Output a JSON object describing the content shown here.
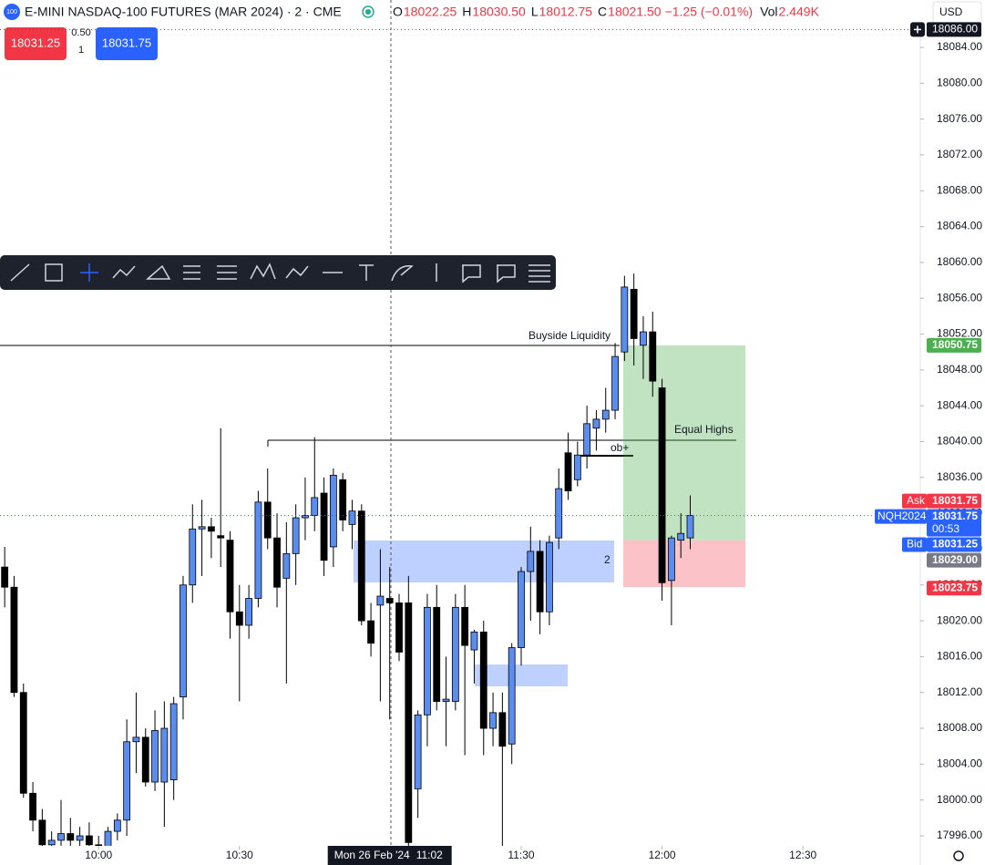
{
  "header": {
    "badge": "100",
    "title": "E-MINI NASDAQ-100 FUTURES (MAR 2024) · 2 · CME",
    "ohlc": [
      {
        "k": "O",
        "v": "18022.25"
      },
      {
        "k": "H",
        "v": "18030.50"
      },
      {
        "k": "L",
        "v": "18012.75"
      },
      {
        "k": "C",
        "v": "18021.50"
      }
    ],
    "change": "−1.25 (−0.01%)",
    "vol_label": "Vol",
    "vol": "2.449K",
    "currency": "USD"
  },
  "order_panel": {
    "sell": "18031.25",
    "buy": "18031.75",
    "spread": "0.50",
    "qty": "1"
  },
  "crosshair": {
    "date": "Mon 26 Feb '24",
    "time": "11:02",
    "price": {
      "value": 18086,
      "label": "18086.00"
    }
  },
  "annotations": {
    "buyside": "Buyside Liquidity",
    "equal_highs": "Equal Highs",
    "ob": "ob+",
    "zone": "2"
  },
  "chart_data": {
    "type": "candlestick",
    "x": [
      "09:40",
      "09:42",
      "09:44",
      "09:46",
      "09:48",
      "09:50",
      "09:52",
      "09:54",
      "09:56",
      "09:58",
      "10:00",
      "10:02",
      "10:04",
      "10:06",
      "10:08",
      "10:10",
      "10:12",
      "10:14",
      "10:16",
      "10:18",
      "10:20",
      "10:22",
      "10:24",
      "10:26",
      "10:28",
      "10:30",
      "10:32",
      "10:34",
      "10:36",
      "10:38",
      "10:40",
      "10:42",
      "10:44",
      "10:46",
      "10:48",
      "10:50",
      "10:52",
      "10:54",
      "10:56",
      "10:58",
      "11:00",
      "11:02",
      "11:04",
      "11:06",
      "11:08",
      "11:10",
      "11:12",
      "11:14",
      "11:16",
      "11:18",
      "11:20",
      "11:22",
      "11:24",
      "11:26",
      "11:28",
      "11:30",
      "11:32",
      "11:34",
      "11:36",
      "11:38",
      "11:40",
      "11:42",
      "11:44",
      "11:46",
      "11:48",
      "11:50",
      "11:52",
      "11:54",
      "11:56",
      "11:58",
      "12:00",
      "12:02",
      "12:04",
      "12:06"
    ],
    "open": [
      18026,
      18023.75,
      18012,
      18000.75,
      17997.75,
      17995,
      17995.5,
      17996.25,
      17995.5,
      17996,
      17995,
      17994.5,
      17996.5,
      17997.75,
      18006.5,
      18007,
      18002,
      18002,
      18002.25,
      18011.5,
      18024,
      18030.25,
      18030.5,
      18029.5,
      18029,
      18021,
      18019.5,
      18022.5,
      18033.25,
      18029.25,
      18024.75,
      18027.5,
      18031.5,
      18031.75,
      18034.25,
      18028.25,
      18035.75,
      18030.75,
      18032.25,
      18020,
      18021.75,
      18022.5,
      18022,
      18022,
      18001.25,
      18009.5,
      18021.5,
      18011,
      18011,
      18021.5,
      18016.75,
      18018.75,
      18008,
      18009.75,
      18006.25,
      18017,
      18025.5,
      18027.75,
      18021,
      18029.25,
      18038.75,
      18035.75,
      18038.5,
      18041.5,
      18042.5,
      18043.5,
      18050,
      18057,
      18050.75,
      18052.25,
      18046,
      18024.5,
      18029,
      18029.25
    ],
    "high": [
      18028.25,
      18025,
      18013,
      18002,
      17999,
      17996.5,
      18000,
      17998,
      17997,
      17997.5,
      17996,
      17997,
      17998.5,
      18009,
      18012,
      18008,
      18010,
      18011,
      18011.5,
      18025,
      18033,
      18033.5,
      18031.5,
      18041.5,
      18030,
      18024,
      18024,
      18034.5,
      18037,
      18032,
      18031,
      18033,
      18036,
      18040.5,
      18036,
      18037,
      18036.5,
      18033.5,
      18033,
      18022,
      18028,
      18026,
      18023,
      18025,
      18010,
      18023,
      18024,
      18016,
      18023,
      18024,
      18019,
      18020,
      18012,
      18012,
      18017.5,
      18026,
      18030.5,
      18029,
      18029.5,
      18037,
      18041,
      18040,
      18044,
      18043.5,
      18046,
      18051,
      18058.5,
      18058.75,
      18054,
      18054.5,
      18047,
      18029.5,
      18032,
      18034
    ],
    "low": [
      18021.5,
      18011.5,
      18000.25,
      17996.5,
      17994,
      17994,
      17994,
      17994,
      17994,
      17994,
      17993.5,
      17994,
      17995.5,
      17996,
      18003,
      18001.5,
      18001,
      17997,
      18000,
      18009,
      18022,
      18025,
      18027,
      18026,
      18018,
      18011,
      18018,
      18021.5,
      18028,
      18021.5,
      18013,
      18024,
      18029,
      18030,
      18025,
      18026,
      18030,
      18028,
      18019.5,
      18016,
      18011,
      18009,
      18015.5,
      17993.5,
      17998,
      18006,
      18010,
      18006,
      18010,
      18005,
      18013,
      18005,
      18006,
      17994.5,
      18004,
      18015,
      18020,
      18018.5,
      18019.5,
      18028,
      18033.5,
      18035,
      18037,
      18039,
      18041,
      18042.5,
      18049,
      18048.5,
      18047,
      18045,
      18022.25,
      18019.5,
      18027,
      18028
    ],
    "close": [
      18023.75,
      18012,
      18000.75,
      17997.75,
      17995,
      17995.5,
      17996.25,
      17995.5,
      17996,
      17995,
      17994.5,
      17996.5,
      17997.75,
      18006.5,
      18007,
      18002,
      18007.75,
      18008,
      18010.75,
      18024,
      18030.25,
      18030.5,
      18030,
      18029.25,
      18021,
      18019.5,
      18022.5,
      18033.25,
      18029.25,
      18023.75,
      18027.5,
      18031.5,
      18031.75,
      18033.75,
      18026.75,
      18036.25,
      18031.25,
      18032.25,
      18020,
      18017.5,
      18022.75,
      18022,
      18016.5,
      17995.25,
      18009.5,
      18021.5,
      18011,
      18011.25,
      18021.5,
      18017.25,
      18018.75,
      18008,
      18009.75,
      18006,
      18017,
      18025.5,
      18027.75,
      18021,
      18028.75,
      18034.75,
      18034.5,
      18038.5,
      18042,
      18042.5,
      18043.5,
      18049.5,
      18057.25,
      18051.5,
      18052.25,
      18046.75,
      18024.25,
      18029.25,
      18029.75,
      18031.75
    ],
    "up_color": "#5b8def",
    "down_color": "#000000",
    "xlim": [
      "09:39",
      "12:55"
    ],
    "xticks": [
      "10:00",
      "10:30",
      "11:30",
      "12:00",
      "12:30"
    ],
    "ylim": [
      17994.88,
      18086.44
    ],
    "yticks": [
      {
        "value": 17996,
        "label": "17996.00"
      },
      {
        "value": 18000,
        "label": "18000.00"
      },
      {
        "value": 18004,
        "label": "18004.00"
      },
      {
        "value": 18008,
        "label": "18008.00"
      },
      {
        "value": 18012,
        "label": "18012.00"
      },
      {
        "value": 18016,
        "label": "18016.00"
      },
      {
        "value": 18020,
        "label": "18020.00"
      },
      {
        "value": 18024,
        "label": "18024.00"
      },
      {
        "value": 18028,
        "label": "18028.00"
      },
      {
        "value": 18032,
        "label": "18032.00"
      },
      {
        "value": 18036,
        "label": "18036.00"
      },
      {
        "value": 18040,
        "label": "18040.00"
      },
      {
        "value": 18044,
        "label": "18044.00"
      },
      {
        "value": 18048,
        "label": "18048.00"
      },
      {
        "value": 18052,
        "label": "18052.00"
      },
      {
        "value": 18056,
        "label": "18056.00"
      },
      {
        "value": 18060,
        "label": "18060.00"
      },
      {
        "value": 18064,
        "label": "18064.00"
      },
      {
        "value": 18068,
        "label": "18068.00"
      },
      {
        "value": 18072,
        "label": "18072.00"
      },
      {
        "value": 18076,
        "label": "18076.00"
      },
      {
        "value": 18080,
        "label": "18080.00"
      },
      {
        "value": 18084,
        "label": "18084.00"
      }
    ],
    "position": {
      "target": 18050.75,
      "entry": {
        "value": 18029,
        "label": "18029.00"
      },
      "stop": 18023.75
    },
    "quotes": {
      "ask_name": "Ask",
      "ask": 18031.75,
      "symbol": "NQH2024",
      "last": 18031.75,
      "countdown": "00:53",
      "bid_name": "Bid",
      "bid": 18031.25
    }
  }
}
